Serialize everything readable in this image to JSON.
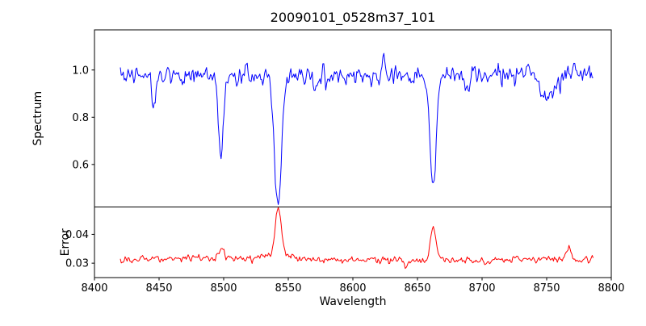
{
  "figure": {
    "title": "20090101_0528m37_101",
    "background": "#ffffff"
  },
  "chart_data": [
    {
      "type": "line",
      "name": "spectrum",
      "title": "20090101_0528m37_101",
      "ylabel": "Spectrum",
      "color": "#0000ff",
      "xlim": [
        8400,
        8800
      ],
      "ylim": [
        0.42,
        1.17
      ],
      "yticks": [
        0.6,
        0.8,
        1.0
      ],
      "ytick_labels": [
        "0.6",
        "0.8",
        "1.0"
      ],
      "x_start": 8420,
      "x_end": 8786,
      "x_step": 0.75,
      "baseline": 0.975,
      "noise_sigma": 0.022,
      "wiggle_amp": 0.008,
      "wiggle_period": 41,
      "seed": 42,
      "grid": false,
      "absorption_lines": [
        {
          "center": 8446,
          "depth": 0.17,
          "sigma": 1.2
        },
        {
          "center": 8468,
          "depth": 0.06,
          "sigma": 1.0
        },
        {
          "center": 8498.0,
          "depth": 0.36,
          "sigma": 2.0
        },
        {
          "center": 8542.1,
          "depth": 0.55,
          "sigma": 2.8
        },
        {
          "center": 8662.1,
          "depth": 0.47,
          "sigma": 2.4
        },
        {
          "center": 8688,
          "depth": 0.05,
          "sigma": 2.0
        },
        {
          "center": 8751,
          "depth": 0.1,
          "sigma": 6.0
        }
      ],
      "emission_lines": [
        {
          "center": 8624,
          "height": 0.1,
          "sigma": 0.8
        }
      ]
    },
    {
      "type": "line",
      "name": "error",
      "ylabel": "Error",
      "xlabel": "Wavelength",
      "color": "#ff0000",
      "xlim": [
        8400,
        8800
      ],
      "ylim": [
        0.025,
        0.0495
      ],
      "yticks": [
        0.03,
        0.04
      ],
      "ytick_labels": [
        "0.03",
        "0.04"
      ],
      "xticks": [
        8400,
        8450,
        8500,
        8550,
        8600,
        8650,
        8700,
        8750,
        8800
      ],
      "xtick_labels": [
        "8400",
        "8450",
        "8500",
        "8550",
        "8600",
        "8650",
        "8700",
        "8750",
        "8800"
      ],
      "x_start": 8420,
      "x_end": 8786,
      "x_step": 0.75,
      "baseline": 0.0312,
      "noise_sigma": 0.0007,
      "wiggle_amp": 0.0003,
      "wiggle_period": 55,
      "seed": 7,
      "grid": false,
      "emission_lines": [
        {
          "center": 8446,
          "height": 0.0015,
          "sigma": 1.2
        },
        {
          "center": 8498,
          "height": 0.0045,
          "sigma": 2.0
        },
        {
          "center": 8542.1,
          "height": 0.0165,
          "sigma": 2.2
        },
        {
          "center": 8542.1,
          "height": 0.0018,
          "sigma": 9.0
        },
        {
          "center": 8662.1,
          "height": 0.011,
          "sigma": 2.0
        },
        {
          "center": 8641,
          "height": -0.002,
          "sigma": 1.5
        },
        {
          "center": 8767,
          "height": 0.004,
          "sigma": 2.0
        },
        {
          "center": 8727,
          "height": 0.0015,
          "sigma": 1.5
        }
      ]
    }
  ]
}
